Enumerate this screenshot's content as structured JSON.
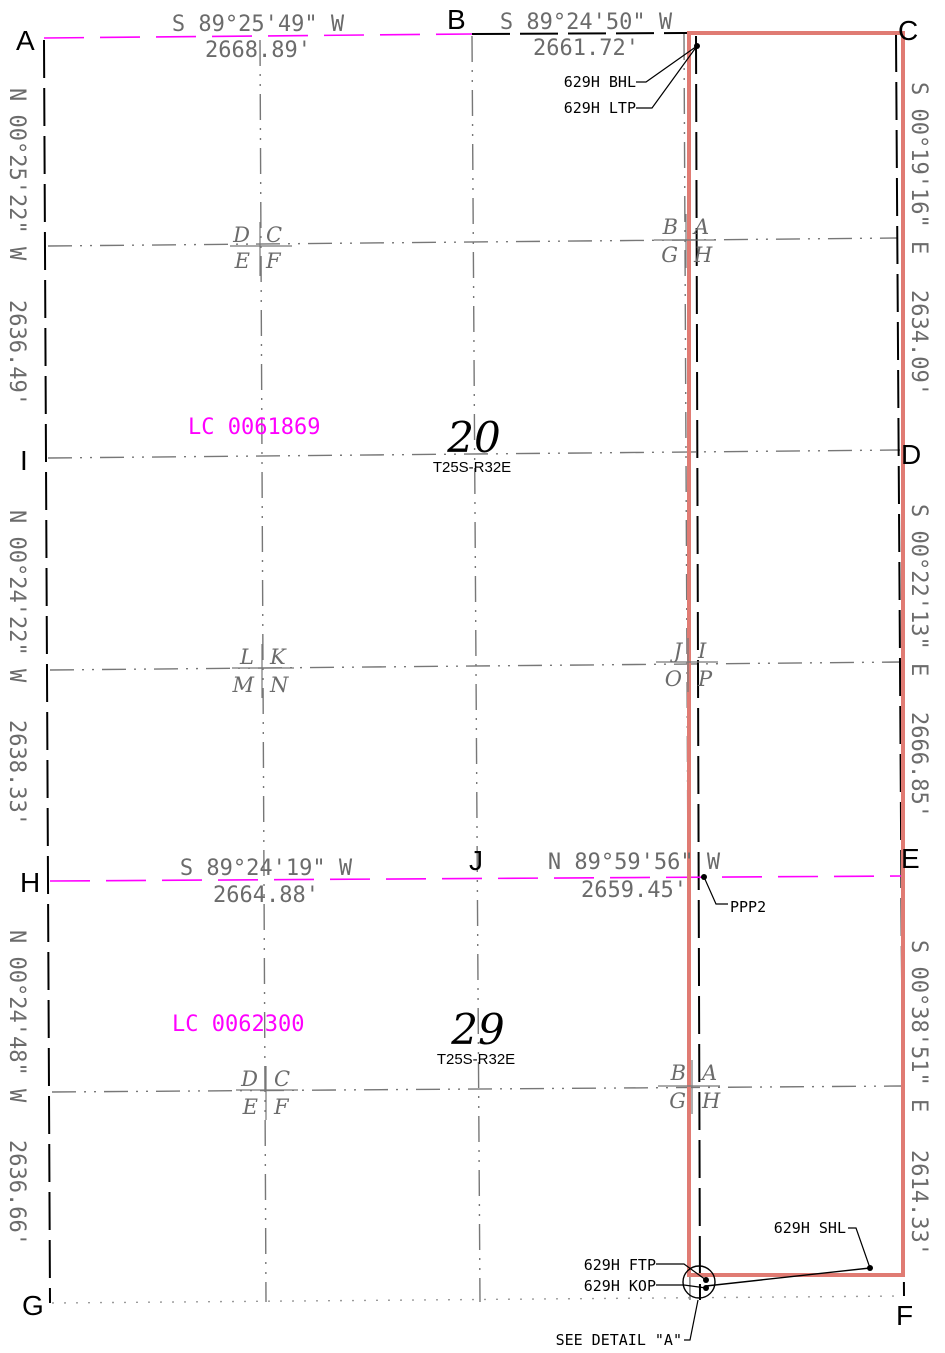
{
  "colors": {
    "section_line": "#000000",
    "quarter_line": "#777777",
    "lease_line": "#ff00ff",
    "lease_text": "#ff00ff",
    "dimension_text": "#6b6b6b",
    "spacing_unit": "#e07b73",
    "well_path": "#000000"
  },
  "corners": {
    "A": "A",
    "B": "B",
    "C": "C",
    "D": "D",
    "E": "E",
    "F": "F",
    "G": "G",
    "H": "H",
    "I": "I",
    "J": "J"
  },
  "bearings": {
    "ab_bearing": "S 89°25'49\" W",
    "ab_distance": "2668.89'",
    "bc_bearing": "S 89°24'50\" W",
    "bc_distance": "2661.72'",
    "cd_bearing": "S 00°19'16\" E",
    "cd_distance": "2634.09'",
    "de_bearing": "S 00°22'13\" E",
    "de_distance": "2666.85'",
    "ef_bearing": "S 00°38'51\" E",
    "ef_distance": "2614.33'",
    "ai_bearing": "N 00°25'22\" W",
    "ai_distance": "2636.49'",
    "ih_bearing": "N 00°24'22\" W",
    "ih_distance": "2638.33'",
    "hg_bearing": "N 00°24'48\" W",
    "hg_distance": "2636.66'",
    "hj_bearing": "S 89°24'19\" W",
    "hj_distance": "2664.88'",
    "je_bearing": "N 89°59'56\" W",
    "je_distance": "2659.45'"
  },
  "sections": {
    "upper": {
      "number": "20",
      "township": "T25S-R32E",
      "lease": "LC 0061869"
    },
    "lower": {
      "number": "29",
      "township": "T25S-R32E",
      "lease": "LC 0062300"
    }
  },
  "quarter_quarters": {
    "sec20_nw": {
      "tl": "D",
      "tr": "C",
      "bl": "E",
      "br": "F"
    },
    "sec20_ne": {
      "tl": "B",
      "tr": "A",
      "bl": "G",
      "br": "H"
    },
    "sec20_sw": {
      "tl": "L",
      "tr": "K",
      "bl": "M",
      "br": "N"
    },
    "sec20_se": {
      "tl": "J",
      "tr": "I",
      "bl": "O",
      "br": "P"
    },
    "sec29_nw": {
      "tl": "D",
      "tr": "C",
      "bl": "E",
      "br": "F"
    },
    "sec29_ne": {
      "tl": "B",
      "tr": "A",
      "bl": "G",
      "br": "H"
    }
  },
  "callouts": {
    "bhl": "629H BHL",
    "ltp": "629H LTP",
    "ppp2": "PPP2",
    "shl": "629H SHL",
    "ftp": "629H FTP",
    "kop": "629H KOP",
    "detail": "SEE DETAIL \"A\""
  }
}
